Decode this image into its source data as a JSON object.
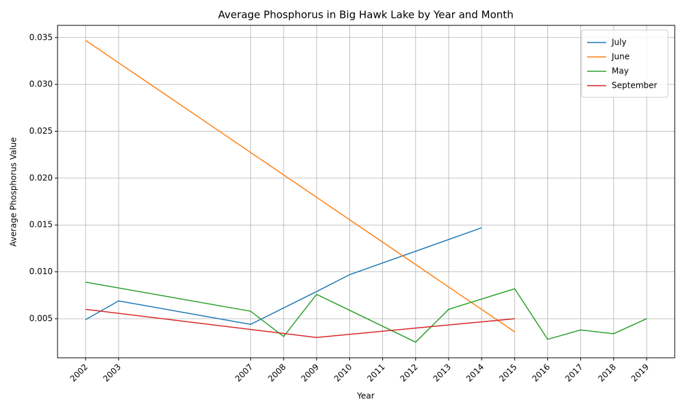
{
  "chart_data": {
    "type": "line",
    "title": "Average Phosphorus in Big Hawk Lake by Year and Month",
    "x_label": "Year",
    "y_label": "Average Phosphorus Value",
    "series": [
      {
        "name": "July",
        "color": "#1f77b4",
        "x": [
          2002,
          2003,
          2007,
          2009,
          2010,
          2014
        ],
        "values": [
          0.0049,
          0.0069,
          0.0044,
          0.0079,
          0.0097,
          0.0147
        ]
      },
      {
        "name": "June",
        "color": "#ff7f0e",
        "x": [
          2002,
          2015
        ],
        "values": [
          0.0347,
          0.0036
        ]
      },
      {
        "name": "May",
        "color": "#2ca02c",
        "x": [
          2002,
          2007,
          2008,
          2009,
          2012,
          2013,
          2015,
          2016,
          2017,
          2018,
          2019
        ],
        "values": [
          0.0089,
          0.0058,
          0.0031,
          0.0076,
          0.0025,
          0.006,
          0.0082,
          0.0028,
          0.0038,
          0.0034,
          0.005
        ]
      },
      {
        "name": "September",
        "color": "#d62728",
        "x": [
          2002,
          2009,
          2015
        ],
        "values": [
          0.006,
          0.003,
          0.005
        ]
      }
    ],
    "xlim": [
      2001.15,
      2019.85
    ],
    "xticks": [
      2002,
      2003,
      2007,
      2008,
      2009,
      2010,
      2011,
      2012,
      2013,
      2014,
      2015,
      2016,
      2017,
      2018,
      2019
    ],
    "ylim": [
      0.00083,
      0.0363
    ],
    "yticks": [
      0.005,
      {
        "value": 0.01,
        "label": "0.010"
      },
      0.015,
      {
        "value": 0.02,
        "label": "0.020"
      },
      0.025,
      {
        "value": 0.03,
        "label": "0.030"
      },
      0.035
    ],
    "grid": true,
    "legend": "upper right"
  }
}
